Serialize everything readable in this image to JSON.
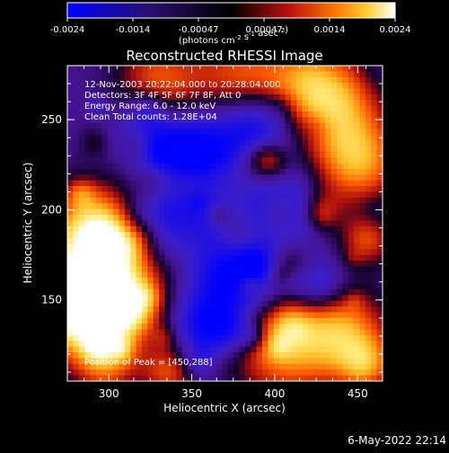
{
  "colorbar": {
    "ticks": [
      "-0.0024",
      "-0.0014",
      "-0.00047",
      "0.00047",
      "0.0014",
      "0.0024"
    ],
    "units_prefix": "(photons cm",
    "units_exp1": "-2",
    "units_mid": " s",
    "units_exp2": "-1",
    "units_mid2": " asec",
    "units_exp3": "-2",
    "units_suffix": ")"
  },
  "chart_data": {
    "type": "heatmap",
    "title": "Reconstructed RHESSI Image",
    "xlabel": "Heliocentric X (arcsec)",
    "ylabel": "Heliocentric Y (arcsec)",
    "xlim": [
      275,
      465
    ],
    "ylim": [
      105,
      280
    ],
    "x_ticks": [
      "300",
      "350",
      "400",
      "450"
    ],
    "y_ticks": [
      "150",
      "200",
      "250"
    ],
    "color_range": [
      -0.0024,
      0.0024
    ],
    "colormap": "blue-black-red-yellow-white",
    "annotations": [
      "12-Nov-2003 20:22:04.000 to 20:28:04.000",
      "Detectors: 3F 4F 5F 6F 7F 8F, Att 0",
      "Energy Range: 6.0 - 12.0 keV",
      "Clean     Total counts: 1.28E+04"
    ],
    "peak_text": "Position of Peak = [450,288]",
    "peak_position": [
      450,
      288
    ]
  },
  "footer": {
    "date": "6-May-2022 22:14"
  }
}
